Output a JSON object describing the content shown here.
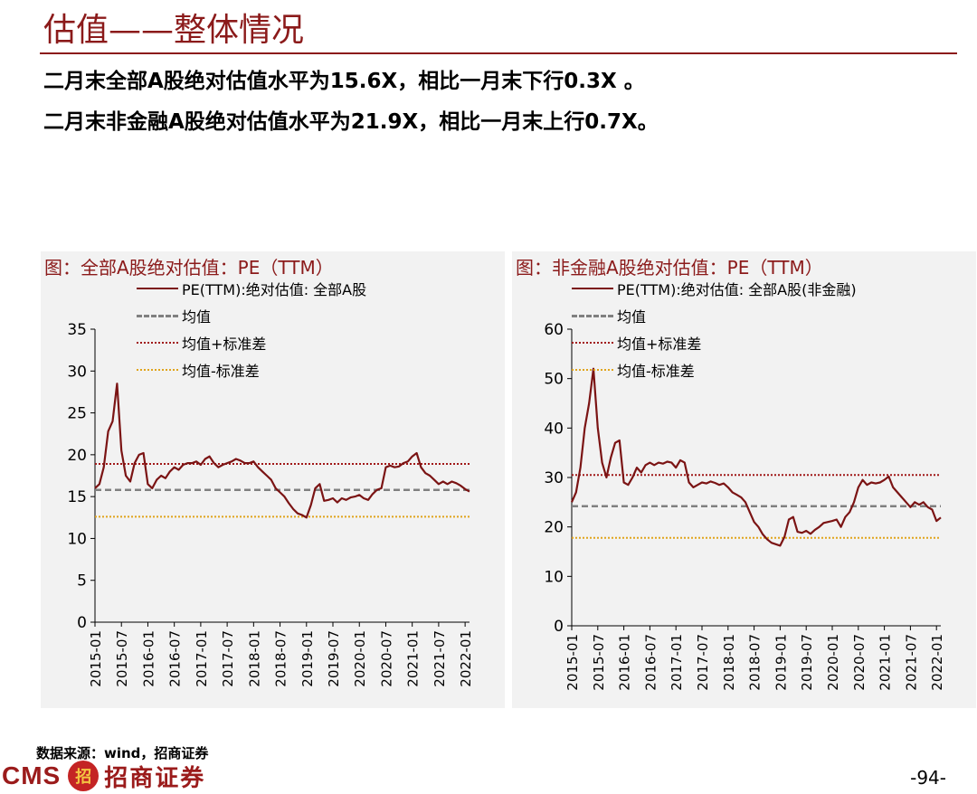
{
  "page": {
    "title": "估值——整体情况",
    "line1": "二月末全部A股绝对估值水平为15.6X，相比一月末下行0.3X 。",
    "line2": "二月末非金融A股绝对估值水平为21.9X，相比一月末上行0.7X。",
    "source": "数据来源：wind，招商证券",
    "logo_text": "CMS",
    "logo_cn": "招商证券",
    "page_number": "-94-"
  },
  "colors": {
    "accent": "#8B1A1A",
    "pe": "#7B1414",
    "mean": "#808080",
    "plus": "#A01818",
    "minus": "#E0A41C"
  },
  "chart_data": [
    {
      "type": "line",
      "title": "图：全部A股绝对估值：PE（TTM）",
      "legend": [
        "PE(TTM):绝对估值: 全部A股",
        "均值",
        "均值+标准差",
        "均值-标准差"
      ],
      "ylim": [
        0,
        35
      ],
      "yticks": [
        0,
        5,
        10,
        15,
        20,
        25,
        30,
        35
      ],
      "xticks": [
        "2015-01",
        "2015-07",
        "2016-01",
        "2016-07",
        "2017-01",
        "2017-07",
        "2018-01",
        "2018-07",
        "2019-01",
        "2019-07",
        "2020-01",
        "2020-07",
        "2021-01",
        "2021-07",
        "2022-01"
      ],
      "x_range": [
        "2015-01",
        "2022-02"
      ],
      "mean": 15.8,
      "mean_plus_std": 18.9,
      "mean_minus_std": 12.6,
      "series": [
        {
          "name": "PE(TTM):绝对估值: 全部A股",
          "x": [
            "2015-01",
            "2015-02",
            "2015-03",
            "2015-04",
            "2015-05",
            "2015-06",
            "2015-07",
            "2015-08",
            "2015-09",
            "2015-10",
            "2015-11",
            "2015-12",
            "2016-01",
            "2016-02",
            "2016-03",
            "2016-04",
            "2016-05",
            "2016-06",
            "2016-07",
            "2016-08",
            "2016-09",
            "2016-10",
            "2016-11",
            "2016-12",
            "2017-01",
            "2017-02",
            "2017-03",
            "2017-04",
            "2017-05",
            "2017-06",
            "2017-07",
            "2017-08",
            "2017-09",
            "2017-10",
            "2017-11",
            "2017-12",
            "2018-01",
            "2018-02",
            "2018-03",
            "2018-04",
            "2018-05",
            "2018-06",
            "2018-07",
            "2018-08",
            "2018-09",
            "2018-10",
            "2018-11",
            "2018-12",
            "2019-01",
            "2019-02",
            "2019-03",
            "2019-04",
            "2019-05",
            "2019-06",
            "2019-07",
            "2019-08",
            "2019-09",
            "2019-10",
            "2019-11",
            "2019-12",
            "2020-01",
            "2020-02",
            "2020-03",
            "2020-04",
            "2020-05",
            "2020-06",
            "2020-07",
            "2020-08",
            "2020-09",
            "2020-10",
            "2020-11",
            "2020-12",
            "2021-01",
            "2021-02",
            "2021-03",
            "2021-04",
            "2021-05",
            "2021-06",
            "2021-07",
            "2021-08",
            "2021-09",
            "2021-10",
            "2021-11",
            "2021-12",
            "2022-01",
            "2022-02"
          ],
          "values": [
            16.0,
            16.5,
            18.5,
            22.8,
            24.0,
            28.5,
            20.5,
            17.5,
            16.8,
            19.0,
            20.0,
            20.2,
            16.5,
            16.0,
            17.0,
            17.5,
            17.2,
            18.0,
            18.5,
            18.2,
            18.8,
            19.0,
            19.0,
            19.2,
            18.8,
            19.5,
            19.8,
            19.0,
            18.5,
            18.8,
            19.0,
            19.2,
            19.5,
            19.3,
            19.0,
            19.0,
            19.2,
            18.5,
            18.0,
            17.5,
            17.0,
            16.0,
            15.5,
            15.0,
            14.2,
            13.5,
            13.0,
            12.8,
            12.5,
            14.0,
            16.0,
            16.5,
            14.5,
            14.6,
            14.8,
            14.3,
            14.8,
            14.6,
            14.9,
            15.0,
            15.2,
            14.8,
            14.6,
            15.3,
            15.8,
            16.0,
            18.5,
            18.7,
            18.5,
            18.6,
            19.0,
            19.2,
            19.8,
            20.2,
            18.5,
            17.8,
            17.5,
            17.0,
            16.5,
            16.8,
            16.5,
            16.8,
            16.6,
            16.3,
            15.9,
            15.6
          ]
        }
      ]
    },
    {
      "type": "line",
      "title": "图：非金融A股绝对估值：PE（TTM）",
      "legend": [
        "PE(TTM):绝对估值: 全部A股(非金融)",
        "均值",
        "均值+标准差",
        "均值-标准差"
      ],
      "ylim": [
        0,
        60
      ],
      "yticks": [
        0,
        10,
        20,
        30,
        40,
        50,
        60
      ],
      "xticks": [
        "2015-01",
        "2015-07",
        "2016-01",
        "2016-07",
        "2017-01",
        "2017-07",
        "2018-01",
        "2018-07",
        "2019-01",
        "2019-07",
        "2020-01",
        "2020-07",
        "2021-01",
        "2021-07",
        "2022-01"
      ],
      "x_range": [
        "2015-01",
        "2022-02"
      ],
      "mean": 24.2,
      "mean_plus_std": 30.5,
      "mean_minus_std": 17.8,
      "series": [
        {
          "name": "PE(TTM):绝对估值: 全部A股(非金融)",
          "x": [
            "2015-01",
            "2015-02",
            "2015-03",
            "2015-04",
            "2015-05",
            "2015-06",
            "2015-07",
            "2015-08",
            "2015-09",
            "2015-10",
            "2015-11",
            "2015-12",
            "2016-01",
            "2016-02",
            "2016-03",
            "2016-04",
            "2016-05",
            "2016-06",
            "2016-07",
            "2016-08",
            "2016-09",
            "2016-10",
            "2016-11",
            "2016-12",
            "2017-01",
            "2017-02",
            "2017-03",
            "2017-04",
            "2017-05",
            "2017-06",
            "2017-07",
            "2017-08",
            "2017-09",
            "2017-10",
            "2017-11",
            "2017-12",
            "2018-01",
            "2018-02",
            "2018-03",
            "2018-04",
            "2018-05",
            "2018-06",
            "2018-07",
            "2018-08",
            "2018-09",
            "2018-10",
            "2018-11",
            "2018-12",
            "2019-01",
            "2019-02",
            "2019-03",
            "2019-04",
            "2019-05",
            "2019-06",
            "2019-07",
            "2019-08",
            "2019-09",
            "2019-10",
            "2019-11",
            "2019-12",
            "2020-01",
            "2020-02",
            "2020-03",
            "2020-04",
            "2020-05",
            "2020-06",
            "2020-07",
            "2020-08",
            "2020-09",
            "2020-10",
            "2020-11",
            "2020-12",
            "2021-01",
            "2021-02",
            "2021-03",
            "2021-04",
            "2021-05",
            "2021-06",
            "2021-07",
            "2021-08",
            "2021-09",
            "2021-10",
            "2021-11",
            "2021-12",
            "2022-01",
            "2022-02"
          ],
          "values": [
            25.0,
            27.0,
            32.0,
            40.0,
            45.0,
            52.0,
            40.0,
            33.0,
            30.0,
            34.0,
            37.0,
            37.5,
            29.0,
            28.5,
            30.0,
            32.0,
            31.0,
            32.5,
            33.0,
            32.5,
            33.0,
            32.8,
            33.2,
            33.0,
            32.0,
            33.5,
            33.0,
            29.0,
            28.0,
            28.5,
            29.0,
            28.8,
            29.2,
            28.9,
            28.5,
            28.8,
            28.0,
            27.0,
            26.5,
            26.0,
            25.0,
            23.0,
            21.0,
            20.0,
            18.5,
            17.5,
            16.8,
            16.5,
            16.2,
            18.0,
            21.5,
            22.0,
            19.0,
            18.8,
            19.2,
            18.6,
            19.4,
            20.0,
            20.8,
            21.0,
            21.2,
            21.5,
            20.0,
            22.0,
            23.0,
            25.0,
            28.0,
            29.5,
            28.5,
            29.0,
            28.8,
            29.0,
            29.5,
            30.2,
            28.0,
            27.0,
            26.0,
            25.0,
            24.0,
            25.0,
            24.5,
            25.0,
            24.0,
            23.5,
            21.2,
            21.9
          ]
        }
      ]
    }
  ]
}
